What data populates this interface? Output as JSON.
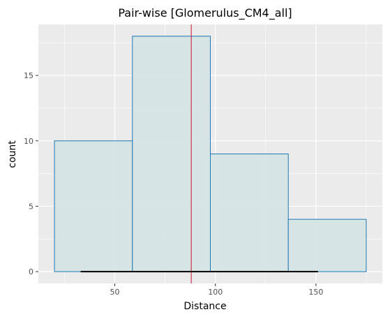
{
  "chart_data": {
    "type": "bar",
    "title": "Pair-wise [Glomerulus_CM4_all]",
    "xlabel": "Distance",
    "ylabel": "count",
    "bins": [
      {
        "x_start": 20,
        "x_end": 58.75,
        "count": 10
      },
      {
        "x_start": 58.75,
        "x_end": 97.5,
        "count": 18
      },
      {
        "x_start": 97.5,
        "x_end": 136.25,
        "count": 9
      },
      {
        "x_start": 136.25,
        "x_end": 175,
        "count": 4
      }
    ],
    "vertical_line": {
      "x": 88,
      "color": "#c8102e"
    },
    "range_segment": {
      "x_start": 33,
      "x_end": 151,
      "y": 0,
      "color": "#000000"
    },
    "xlim": [
      12,
      183
    ],
    "ylim": [
      -0.9,
      18.9
    ],
    "x_ticks": [
      50,
      100,
      150
    ],
    "y_ticks": [
      0,
      5,
      10,
      15
    ],
    "x_tick_labels": [
      "50",
      "100",
      "150"
    ],
    "y_tick_labels": [
      "0",
      "5",
      "10",
      "15"
    ],
    "grid": true,
    "colors": {
      "panel_background": "#ebebeb",
      "gridline": "#ffffff",
      "bar_fill": "#d5e5e3",
      "bar_stroke": "#1f77b4"
    }
  }
}
